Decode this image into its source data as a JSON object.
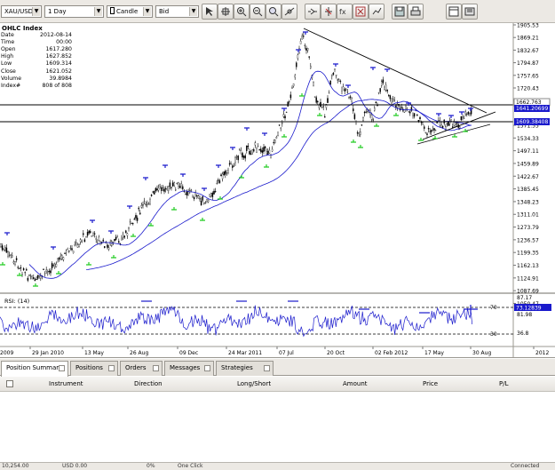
{
  "toolbar": {
    "instrument": "XAU/USD",
    "period": "1 Day",
    "chart_type": "Candle",
    "offer_side": "Bid"
  },
  "ohlc_index": {
    "title": "OHLC Index",
    "rows": [
      {
        "label": "Date",
        "value": "2012-08-14"
      },
      {
        "label": "Time",
        "value": "00:00"
      },
      {
        "label": "Open",
        "value": "1617.280"
      },
      {
        "label": "High",
        "value": "1627.852"
      },
      {
        "label": "Low",
        "value": "1609.314"
      },
      {
        "label": "Close",
        "value": "1621.052"
      },
      {
        "label": "Volume",
        "value": "39.8984"
      },
      {
        "label": "Index#",
        "value": "808 of 808"
      }
    ]
  },
  "price_axis": {
    "ticks": [
      "1905.53",
      "1869.21",
      "1832.67",
      "1794.87",
      "1757.65",
      "1720.43",
      "1683.21",
      "1571.55",
      "1534.33",
      "1497.11",
      "1459.89",
      "1422.67",
      "1385.45",
      "1348.23",
      "1311.01",
      "1273.79",
      "1236.57",
      "1199.35",
      "1162.13",
      "1124.91",
      "1087.69",
      "1050.47"
    ],
    "labels": [
      {
        "text": "1662.763",
        "color": "#c8c8c8"
      },
      {
        "text": "1641.20699",
        "color": "#1a1acc"
      },
      {
        "text": "1609.38408",
        "color": "#1a1acc"
      }
    ]
  },
  "rsi": {
    "title": "RSI: (14)",
    "ticks": [
      "87.17",
      "81.98",
      "36.8"
    ],
    "level_high": "70",
    "level_low": "30",
    "value_label": "73.12839"
  },
  "time_axis": [
    "2009",
    "29 Jan 2010",
    "13 May",
    "26 Aug",
    "09 Dec",
    "24 Mar 2011",
    "07 Jul",
    "20 Oct",
    "02 Feb 2012",
    "17 May",
    "30 Aug",
    "2012"
  ],
  "colors": {
    "candle": "#000000",
    "ma_line": "#1a1acc",
    "rsi_line": "#1a1acc",
    "high_marker": "#1a1acc",
    "low_marker": "#22cc22"
  },
  "icons": [
    "cursor-icon",
    "crosshair-icon",
    "zoom-in-icon",
    "zoom-out-icon",
    "pan-icon",
    "drawings-icon",
    "indicators-icon",
    "fx-icon",
    "periods-icon",
    "template-icon",
    "save-icon",
    "print-icon"
  ],
  "tabs": [
    {
      "label": "Position Summary",
      "active": true
    },
    {
      "label": "Positions",
      "active": false
    },
    {
      "label": "Orders",
      "active": false
    },
    {
      "label": "Messages",
      "active": false
    },
    {
      "label": "Strategies",
      "active": false
    }
  ],
  "positions_table": {
    "headers": [
      "Instrument",
      "Direction",
      "Long/Short",
      "Amount",
      "Price",
      "P/L"
    ]
  },
  "status": {
    "equity": "10,254.00",
    "profit_loss": "USD 0.00",
    "use_of_leverage": "0%",
    "one_click": "One Click",
    "connection": "Connected"
  }
}
